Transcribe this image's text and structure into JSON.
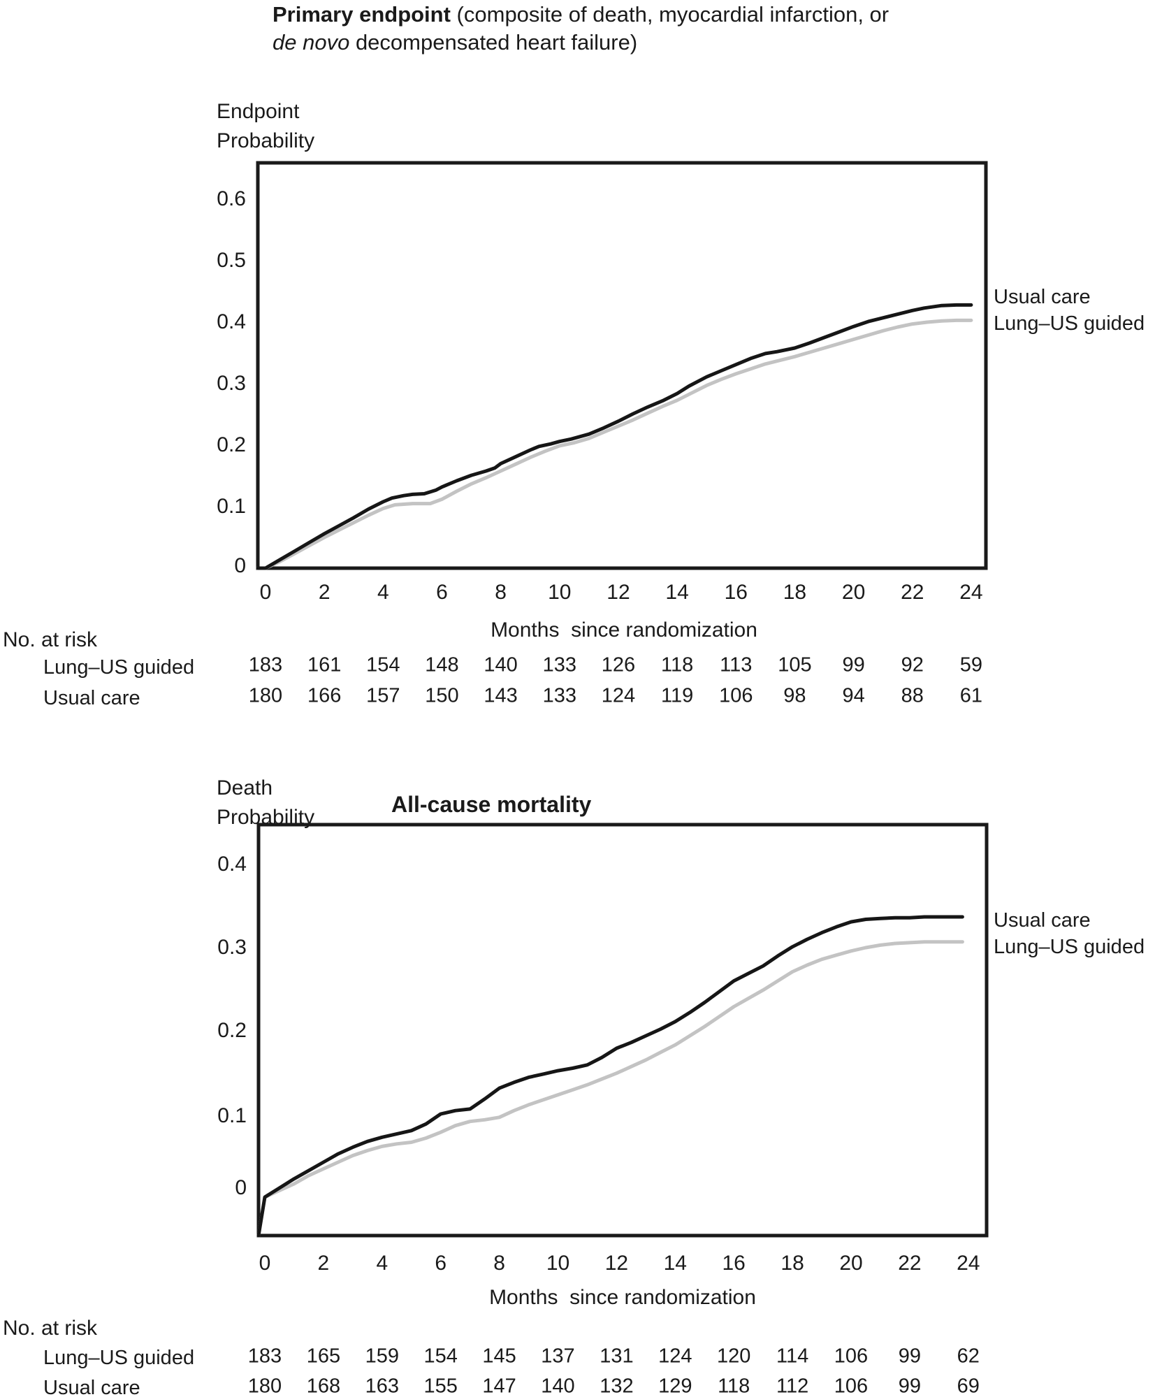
{
  "title": {
    "bold": "Primary endpoint",
    "line1_rest": " (composite of death, myocardial infarction, or",
    "line2_italic": "de novo",
    "line2_rest": " decompensated heart failure)"
  },
  "colors": {
    "usual_care": "#161616",
    "lung_us_guided": "#c3c3c3",
    "axis": "#1a1a1a",
    "text": "#1a1a1a"
  },
  "chart_data": [
    {
      "type": "line",
      "name": "primary-endpoint-curve",
      "title": "",
      "ylabel_lines": [
        "Endpoint",
        "Probability"
      ],
      "xlabel": "Months  since randomization",
      "x_ticks": [
        0,
        2,
        4,
        6,
        8,
        10,
        12,
        14,
        16,
        18,
        20,
        22,
        24
      ],
      "y_ticks": [
        "0.6",
        "0.5",
        "0.4",
        "0.3",
        "0.2",
        "0.1",
        "0"
      ],
      "xlim": [
        0,
        24.7
      ],
      "ylim": [
        0,
        0.66
      ],
      "grid": false,
      "legend": [
        "Usual care",
        "Lung–US guided"
      ],
      "legend_position": "right-outside",
      "series": [
        {
          "name": "Usual care",
          "color_key": "usual_care",
          "points": [
            [
              0,
              0
            ],
            [
              0.5,
              0.014
            ],
            [
              1,
              0.028
            ],
            [
              1.5,
              0.042
            ],
            [
              2,
              0.056
            ],
            [
              2.5,
              0.069
            ],
            [
              3,
              0.082
            ],
            [
              3.5,
              0.096
            ],
            [
              4,
              0.108
            ],
            [
              4.3,
              0.114
            ],
            [
              4.7,
              0.118
            ],
            [
              5,
              0.12
            ],
            [
              5.4,
              0.121
            ],
            [
              5.8,
              0.127
            ],
            [
              6,
              0.132
            ],
            [
              6.5,
              0.142
            ],
            [
              7,
              0.151
            ],
            [
              7.5,
              0.158
            ],
            [
              7.8,
              0.163
            ],
            [
              8,
              0.17
            ],
            [
              8.5,
              0.181
            ],
            [
              9,
              0.192
            ],
            [
              9.3,
              0.198
            ],
            [
              9.7,
              0.202
            ],
            [
              10,
              0.206
            ],
            [
              10.4,
              0.21
            ],
            [
              11,
              0.218
            ],
            [
              11.5,
              0.228
            ],
            [
              12,
              0.239
            ],
            [
              12.5,
              0.251
            ],
            [
              13,
              0.262
            ],
            [
              13.5,
              0.272
            ],
            [
              14,
              0.284
            ],
            [
              14.4,
              0.296
            ],
            [
              15,
              0.311
            ],
            [
              15.5,
              0.321
            ],
            [
              16,
              0.331
            ],
            [
              16.5,
              0.341
            ],
            [
              17,
              0.349
            ],
            [
              17.4,
              0.352
            ],
            [
              18,
              0.358
            ],
            [
              18.5,
              0.366
            ],
            [
              19,
              0.375
            ],
            [
              19.5,
              0.384
            ],
            [
              20,
              0.393
            ],
            [
              20.5,
              0.401
            ],
            [
              21,
              0.407
            ],
            [
              21.5,
              0.413
            ],
            [
              22,
              0.419
            ],
            [
              22.4,
              0.423
            ],
            [
              23,
              0.427
            ],
            [
              23.5,
              0.428
            ],
            [
              24,
              0.428
            ]
          ]
        },
        {
          "name": "Lung–US guided",
          "color_key": "lung_us_guided",
          "points": [
            [
              0,
              0
            ],
            [
              0.5,
              0.011
            ],
            [
              1,
              0.024
            ],
            [
              1.5,
              0.037
            ],
            [
              2,
              0.05
            ],
            [
              2.5,
              0.062
            ],
            [
              3,
              0.074
            ],
            [
              3.5,
              0.086
            ],
            [
              4,
              0.097
            ],
            [
              4.4,
              0.103
            ],
            [
              5,
              0.105
            ],
            [
              5.6,
              0.105
            ],
            [
              6,
              0.112
            ],
            [
              6.5,
              0.125
            ],
            [
              7,
              0.137
            ],
            [
              7.5,
              0.147
            ],
            [
              8,
              0.158
            ],
            [
              8.5,
              0.169
            ],
            [
              9,
              0.18
            ],
            [
              9.5,
              0.19
            ],
            [
              10,
              0.199
            ],
            [
              10.5,
              0.204
            ],
            [
              11,
              0.211
            ],
            [
              11.5,
              0.221
            ],
            [
              12,
              0.231
            ],
            [
              12.5,
              0.241
            ],
            [
              13,
              0.252
            ],
            [
              13.5,
              0.263
            ],
            [
              14,
              0.273
            ],
            [
              14.5,
              0.285
            ],
            [
              15,
              0.297
            ],
            [
              15.5,
              0.307
            ],
            [
              16,
              0.316
            ],
            [
              16.5,
              0.324
            ],
            [
              17,
              0.332
            ],
            [
              17.5,
              0.338
            ],
            [
              18,
              0.344
            ],
            [
              18.5,
              0.351
            ],
            [
              19,
              0.358
            ],
            [
              19.5,
              0.365
            ],
            [
              20,
              0.372
            ],
            [
              20.5,
              0.379
            ],
            [
              21,
              0.386
            ],
            [
              21.5,
              0.392
            ],
            [
              22,
              0.397
            ],
            [
              22.5,
              0.4
            ],
            [
              23,
              0.402
            ],
            [
              23.5,
              0.403
            ],
            [
              24,
              0.403
            ]
          ]
        }
      ],
      "risk_table": {
        "heading": "No. at risk",
        "months": [
          0,
          2,
          4,
          6,
          8,
          10,
          12,
          14,
          16,
          18,
          20,
          22,
          24
        ],
        "rows": [
          {
            "label": "Lung–US guided",
            "values": [
              183,
              161,
              154,
              148,
              140,
              133,
              126,
              118,
              113,
              105,
              99,
              92,
              59
            ]
          },
          {
            "label": "Usual care",
            "values": [
              180,
              166,
              157,
              150,
              143,
              133,
              124,
              119,
              106,
              98,
              94,
              88,
              61
            ]
          }
        ]
      }
    },
    {
      "type": "line",
      "name": "all-cause-mortality-curve",
      "title": "All-cause mortality",
      "ylabel_lines": [
        "Death",
        "Probability"
      ],
      "xlabel": "Months  since randomization",
      "x_ticks": [
        0,
        2,
        4,
        6,
        8,
        10,
        12,
        14,
        16,
        18,
        20,
        22,
        24
      ],
      "y_ticks": [
        "0.4",
        "0.3",
        "0.2",
        "0.1",
        "0"
      ],
      "xlim": [
        0,
        24.7
      ],
      "ylim": [
        0,
        0.49
      ],
      "grid": false,
      "legend": [
        "Usual care",
        "Lung–US guided"
      ],
      "legend_position": "right-outside",
      "series": [
        {
          "name": "Usual care",
          "color_key": "usual_care",
          "points": [
            [
              0,
              0
            ],
            [
              0.5,
              0.011
            ],
            [
              1,
              0.022
            ],
            [
              1.5,
              0.032
            ],
            [
              2,
              0.042
            ],
            [
              2.5,
              0.052
            ],
            [
              3,
              0.06
            ],
            [
              3.5,
              0.067
            ],
            [
              4,
              0.072
            ],
            [
              4.5,
              0.076
            ],
            [
              5,
              0.08
            ],
            [
              5.5,
              0.088
            ],
            [
              6,
              0.1
            ],
            [
              6.5,
              0.104
            ],
            [
              7,
              0.106
            ],
            [
              7.5,
              0.118
            ],
            [
              8,
              0.131
            ],
            [
              8.5,
              0.138
            ],
            [
              9,
              0.144
            ],
            [
              9.5,
              0.148
            ],
            [
              10,
              0.152
            ],
            [
              10.5,
              0.155
            ],
            [
              11,
              0.159
            ],
            [
              11.5,
              0.168
            ],
            [
              12,
              0.179
            ],
            [
              12.5,
              0.186
            ],
            [
              13,
              0.194
            ],
            [
              13.5,
              0.202
            ],
            [
              14,
              0.211
            ],
            [
              14.5,
              0.222
            ],
            [
              15,
              0.234
            ],
            [
              15.5,
              0.247
            ],
            [
              16,
              0.26
            ],
            [
              16.5,
              0.269
            ],
            [
              17,
              0.278
            ],
            [
              17.5,
              0.29
            ],
            [
              18,
              0.301
            ],
            [
              18.5,
              0.31
            ],
            [
              19,
              0.318
            ],
            [
              19.5,
              0.325
            ],
            [
              20,
              0.331
            ],
            [
              20.5,
              0.334
            ],
            [
              21,
              0.335
            ],
            [
              21.5,
              0.336
            ],
            [
              22,
              0.336
            ],
            [
              22.5,
              0.337
            ],
            [
              23,
              0.337
            ],
            [
              23.8,
              0.337
            ]
          ]
        },
        {
          "name": "Lung–US guided",
          "color_key": "lung_us_guided",
          "points": [
            [
              0,
              0
            ],
            [
              0.5,
              0.008
            ],
            [
              1,
              0.016
            ],
            [
              1.5,
              0.026
            ],
            [
              2,
              0.034
            ],
            [
              2.5,
              0.042
            ],
            [
              3,
              0.05
            ],
            [
              3.5,
              0.056
            ],
            [
              4,
              0.061
            ],
            [
              4.5,
              0.064
            ],
            [
              5,
              0.066
            ],
            [
              5.5,
              0.071
            ],
            [
              6,
              0.078
            ],
            [
              6.5,
              0.086
            ],
            [
              7,
              0.091
            ],
            [
              7.5,
              0.093
            ],
            [
              8,
              0.096
            ],
            [
              8.5,
              0.104
            ],
            [
              9,
              0.111
            ],
            [
              9.5,
              0.117
            ],
            [
              10,
              0.123
            ],
            [
              10.5,
              0.129
            ],
            [
              11,
              0.135
            ],
            [
              11.5,
              0.142
            ],
            [
              12,
              0.149
            ],
            [
              12.5,
              0.157
            ],
            [
              13,
              0.165
            ],
            [
              13.5,
              0.174
            ],
            [
              14,
              0.183
            ],
            [
              14.5,
              0.194
            ],
            [
              15,
              0.205
            ],
            [
              15.5,
              0.217
            ],
            [
              16,
              0.229
            ],
            [
              16.5,
              0.239
            ],
            [
              17,
              0.249
            ],
            [
              17.5,
              0.26
            ],
            [
              18,
              0.271
            ],
            [
              18.5,
              0.279
            ],
            [
              19,
              0.286
            ],
            [
              19.5,
              0.291
            ],
            [
              20,
              0.296
            ],
            [
              20.5,
              0.3
            ],
            [
              21,
              0.303
            ],
            [
              21.5,
              0.305
            ],
            [
              22,
              0.306
            ],
            [
              22.5,
              0.307
            ],
            [
              23,
              0.307
            ],
            [
              23.8,
              0.307
            ]
          ]
        }
      ],
      "risk_table": {
        "heading": "No. at risk",
        "months": [
          0,
          2,
          4,
          6,
          8,
          10,
          12,
          14,
          16,
          18,
          20,
          22,
          24
        ],
        "rows": [
          {
            "label": "Lung–US guided",
            "values": [
              183,
              165,
              159,
              154,
              145,
              137,
              131,
              124,
              120,
              114,
              106,
              99,
              62
            ]
          },
          {
            "label": "Usual care",
            "values": [
              180,
              168,
              163,
              155,
              147,
              140,
              132,
              129,
              118,
              112,
              106,
              99,
              69
            ]
          }
        ]
      }
    }
  ]
}
